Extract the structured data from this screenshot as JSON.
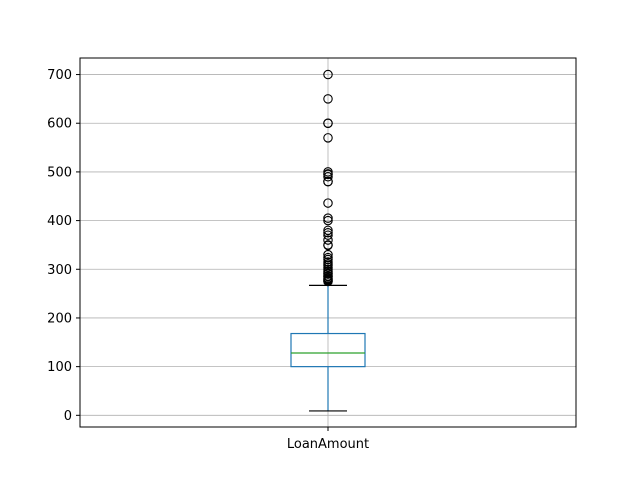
{
  "chart_data": {
    "type": "box",
    "categories": [
      "LoanAmount"
    ],
    "box": {
      "whisker_low": 9,
      "q1": 100,
      "median": 128,
      "q3": 168,
      "whisker_high": 267
    },
    "outliers": [
      275,
      276,
      277,
      279,
      280,
      282,
      285,
      286,
      290,
      292,
      296,
      300,
      304,
      308,
      311,
      315,
      320,
      324,
      330,
      349,
      350,
      360,
      370,
      375,
      380,
      400,
      405,
      436,
      480,
      480,
      490,
      495,
      496,
      500,
      570,
      600,
      600,
      650,
      700
    ],
    "yticks": [
      0,
      100,
      200,
      300,
      400,
      500,
      600,
      700
    ],
    "ylim": [
      -24,
      734
    ],
    "grid": true,
    "colors": {
      "box": "#1f77b4",
      "median": "#2ca02c",
      "whisker_cap": "#000000",
      "outlier": "#000000",
      "grid": "#b0b0b0"
    }
  }
}
